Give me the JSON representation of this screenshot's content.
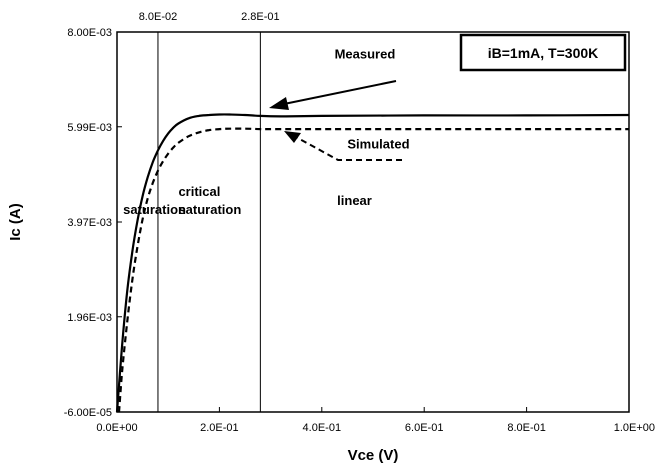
{
  "chart_data": {
    "type": "line",
    "xlabel": "Vce (V)",
    "ylabel": "Ic (A)",
    "xlim": [
      0,
      1.0
    ],
    "ylim": [
      -6e-05,
      0.008
    ],
    "x_ticks": [
      "0.0E+00",
      "2.0E-01",
      "4.0E-01",
      "6.0E-01",
      "8.0E-01",
      "1.0E+00"
    ],
    "x_tick_values": [
      0,
      0.2,
      0.4,
      0.6,
      0.8,
      1.0
    ],
    "y_ticks": [
      "-6.00E-05",
      "1.96E-03",
      "3.97E-03",
      "5.99E-03",
      "8.00E-03"
    ],
    "y_tick_values": [
      -6e-05,
      0.00196,
      0.00397,
      0.00599,
      0.008
    ],
    "grid": false,
    "vertical_markers": [
      {
        "x": 0.08,
        "label": "8.0E-02"
      },
      {
        "x": 0.28,
        "label": "2.8E-01"
      }
    ],
    "info_box": "iB=1mA, T=300K",
    "regions": [
      {
        "lines": [
          "saturation"
        ],
        "x": 0.012,
        "y": 0.00414
      },
      {
        "lines": [
          "critical",
          "saturation"
        ],
        "x": 0.12,
        "y": 0.00452
      },
      {
        "lines": [
          "linear"
        ],
        "x": 0.43,
        "y": 0.00433
      }
    ],
    "annotations": [
      {
        "text": "Measured",
        "x": 0.425,
        "y": 0.00744
      },
      {
        "text": "Simulated",
        "x": 0.45,
        "y": 0.00553
      }
    ],
    "series": [
      {
        "name": "Measured",
        "style": "solid",
        "x": [
          0,
          0.01,
          0.02,
          0.03,
          0.04,
          0.05,
          0.06,
          0.07,
          0.08,
          0.09,
          0.1,
          0.11,
          0.12,
          0.14,
          0.16,
          0.18,
          0.2,
          0.22,
          0.25,
          0.28,
          0.32,
          0.4,
          0.6,
          0.8,
          1.0
        ],
        "y": [
          -6e-05,
          0.00135,
          0.0025,
          0.00335,
          0.004,
          0.00452,
          0.00492,
          0.00524,
          0.00549,
          0.00569,
          0.00585,
          0.00597,
          0.00606,
          0.00617,
          0.00622,
          0.00624,
          0.00625,
          0.00625,
          0.00624,
          0.00622,
          0.00621,
          0.00622,
          0.00623,
          0.00623,
          0.00624
        ]
      },
      {
        "name": "Simulated",
        "style": "dashed",
        "x": [
          0.004,
          0.01,
          0.02,
          0.03,
          0.04,
          0.05,
          0.06,
          0.07,
          0.08,
          0.09,
          0.1,
          0.11,
          0.12,
          0.14,
          0.16,
          0.18,
          0.2,
          0.22,
          0.25,
          0.28,
          0.32,
          0.4,
          0.6,
          0.8,
          1.0
        ],
        "y": [
          -6e-05,
          0.0008,
          0.00185,
          0.00275,
          0.00345,
          0.00403,
          0.00447,
          0.0048,
          0.00506,
          0.00526,
          0.00542,
          0.00555,
          0.00565,
          0.00579,
          0.00587,
          0.00592,
          0.00594,
          0.00595,
          0.00595,
          0.00594,
          0.00594,
          0.00594,
          0.00594,
          0.00594,
          0.00594
        ]
      }
    ]
  }
}
